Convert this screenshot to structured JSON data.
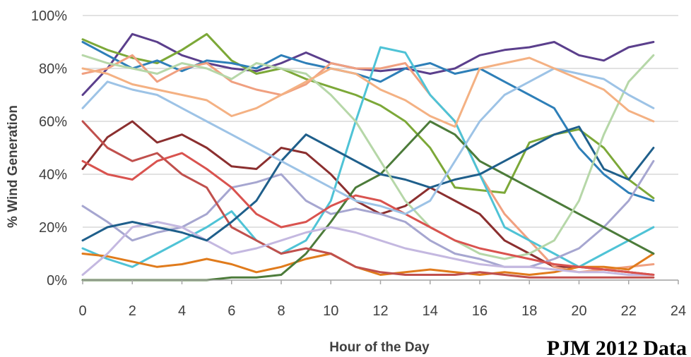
{
  "chart_data": {
    "type": "line",
    "title": "",
    "xlabel": "Hour of the Day",
    "ylabel": "% Wind Generation",
    "xlim": [
      0,
      24
    ],
    "ylim": [
      0,
      100
    ],
    "x_ticks": [
      "0",
      "2",
      "4",
      "6",
      "8",
      "10",
      "12",
      "14",
      "16",
      "18",
      "20",
      "22",
      "24"
    ],
    "y_ticks": [
      "0%",
      "20%",
      "40%",
      "60%",
      "80%",
      "100%"
    ],
    "grid": "horizontal",
    "legend": "none",
    "annotation": "PJM 2012 Data",
    "x": [
      0,
      1,
      2,
      3,
      4,
      5,
      6,
      7,
      8,
      9,
      10,
      11,
      12,
      13,
      14,
      15,
      16,
      17,
      18,
      19,
      20,
      21,
      22,
      23
    ],
    "series": [
      {
        "color": "#5b3f8c",
        "values": [
          70,
          80,
          93,
          90,
          85,
          82,
          80,
          79,
          82,
          86,
          82,
          80,
          79,
          80,
          78,
          80,
          85,
          87,
          88,
          90,
          85,
          83,
          88,
          90
        ]
      },
      {
        "color": "#7ca838",
        "values": [
          91,
          87,
          84,
          82,
          87,
          93,
          83,
          78,
          80,
          76,
          73,
          70,
          66,
          60,
          50,
          35,
          34,
          33,
          52,
          55,
          57,
          50,
          38,
          31
        ]
      },
      {
        "color": "#2e7fb8",
        "values": [
          90,
          85,
          80,
          83,
          79,
          83,
          82,
          80,
          85,
          82,
          80,
          78,
          75,
          80,
          82,
          78,
          80,
          75,
          70,
          65,
          50,
          40,
          33,
          30
        ]
      },
      {
        "color": "#8b2f2f",
        "values": [
          42,
          54,
          60,
          52,
          55,
          50,
          43,
          42,
          50,
          48,
          40,
          30,
          25,
          28,
          35,
          30,
          25,
          15,
          10,
          5,
          5,
          4,
          3,
          2
        ]
      },
      {
        "color": "#f0a080",
        "values": [
          78,
          80,
          85,
          75,
          80,
          82,
          75,
          72,
          70,
          74,
          82,
          80,
          80,
          82,
          70,
          60,
          40,
          25,
          15,
          5,
          3,
          4,
          5,
          6
        ]
      },
      {
        "color": "#4fc3d6",
        "values": [
          12,
          8,
          5,
          10,
          15,
          20,
          26,
          15,
          10,
          15,
          30,
          60,
          88,
          86,
          70,
          60,
          40,
          20,
          15,
          10,
          5,
          10,
          15,
          20
        ]
      },
      {
        "color": "#a6a6d0",
        "values": [
          28,
          22,
          15,
          18,
          20,
          25,
          35,
          37,
          40,
          30,
          25,
          27,
          25,
          22,
          15,
          10,
          8,
          5,
          5,
          8,
          12,
          20,
          30,
          45
        ]
      },
      {
        "color": "#e07b1c",
        "values": [
          10,
          9,
          7,
          5,
          6,
          8,
          6,
          3,
          5,
          8,
          10,
          5,
          2,
          3,
          4,
          3,
          2,
          3,
          2,
          3,
          5,
          5,
          4,
          10
        ]
      },
      {
        "color": "#4c7b3a",
        "values": [
          0,
          0,
          0,
          0,
          0,
          0,
          1,
          1,
          2,
          10,
          22,
          35,
          40,
          50,
          60,
          55,
          45,
          40,
          35,
          30,
          25,
          20,
          15,
          10
        ]
      },
      {
        "color": "#c0504d",
        "values": [
          60,
          50,
          45,
          48,
          40,
          35,
          20,
          15,
          10,
          12,
          10,
          5,
          3,
          2,
          2,
          2,
          3,
          2,
          1,
          1,
          1,
          1,
          1,
          1
        ]
      },
      {
        "color": "#c4b8e0",
        "values": [
          2,
          10,
          20,
          22,
          20,
          15,
          10,
          12,
          15,
          18,
          20,
          18,
          15,
          12,
          10,
          8,
          6,
          5,
          5,
          4,
          3,
          3,
          2,
          2
        ]
      },
      {
        "color": "#1f5f8b",
        "values": [
          15,
          20,
          22,
          20,
          18,
          15,
          22,
          30,
          45,
          55,
          50,
          45,
          40,
          38,
          35,
          38,
          40,
          45,
          50,
          55,
          58,
          42,
          38,
          50
        ]
      },
      {
        "color": "#b6d7a8",
        "values": [
          85,
          82,
          80,
          78,
          82,
          80,
          76,
          82,
          80,
          78,
          70,
          60,
          45,
          30,
          20,
          15,
          10,
          8,
          10,
          15,
          30,
          55,
          75,
          85
        ]
      },
      {
        "color": "#d9534f",
        "values": [
          45,
          40,
          38,
          45,
          48,
          42,
          35,
          25,
          20,
          22,
          28,
          32,
          30,
          25,
          20,
          15,
          12,
          10,
          8,
          6,
          5,
          4,
          3,
          2
        ]
      },
      {
        "color": "#9dc3e6",
        "values": [
          65,
          75,
          72,
          70,
          65,
          60,
          55,
          50,
          45,
          40,
          35,
          30,
          28,
          25,
          30,
          45,
          60,
          70,
          75,
          80,
          78,
          76,
          70,
          65
        ]
      },
      {
        "color": "#f4b183",
        "values": [
          80,
          78,
          74,
          72,
          70,
          68,
          62,
          65,
          70,
          75,
          80,
          78,
          72,
          68,
          62,
          58,
          80,
          82,
          84,
          80,
          76,
          72,
          64,
          60
        ]
      }
    ]
  }
}
